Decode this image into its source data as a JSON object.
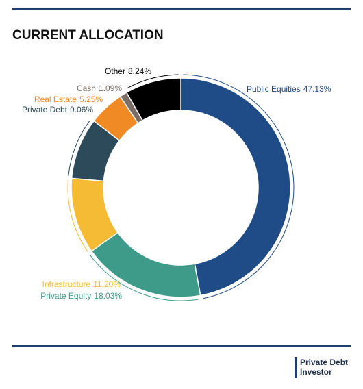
{
  "chart_data": {
    "type": "donut",
    "title": "CURRENT ALLOCATION",
    "categories": [
      "Public Equities",
      "Private Equity",
      "Infrastructure",
      "Private Debt",
      "Real Estate",
      "Cash",
      "Other"
    ],
    "values": [
      47.13,
      18.03,
      11.2,
      9.06,
      5.25,
      1.09,
      8.24
    ],
    "value_labels": [
      "47.13%",
      "18.03%",
      "11.20%",
      "9.06%",
      "5.25%",
      "1.09%",
      "8.24%"
    ],
    "colors": [
      "#1f4b87",
      "#3e9b89",
      "#f5bb35",
      "#2c4a5a",
      "#f08a24",
      "#7a6e66",
      "#000000"
    ]
  },
  "brand": {
    "line1": "Private Debt",
    "line2": "Investor"
  }
}
